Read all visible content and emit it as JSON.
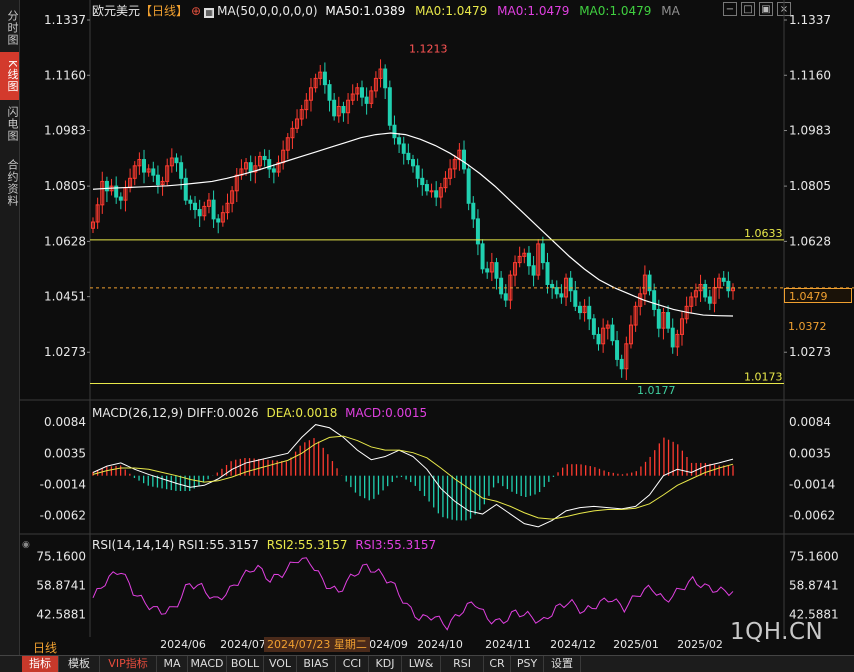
{
  "sidebar": {
    "tabs": [
      {
        "label": "分时图",
        "active": false
      },
      {
        "label": "K线图",
        "active": true
      },
      {
        "label": "闪电图",
        "active": false
      },
      {
        "label": "合约资料",
        "active": false
      }
    ]
  },
  "header": {
    "symbol": "欧元美元",
    "period_tag": "【日线】",
    "ma_label": "MA(50,0,0,0,0,0)",
    "ma50": "MA50:1.0389",
    "ma0_a": "MA0:1.0479",
    "ma0_b": "MA0:1.0479",
    "ma0_c": "MA0:1.0479",
    "ma_tail": "MA",
    "colors": {
      "symbol": "#e8e8e8",
      "period": "#f0a030",
      "ma50": "#ffffff",
      "ma0_a": "#e8e84a",
      "ma0_b": "#e040e0",
      "ma0_c": "#40d040",
      "ma_tail": "#909090"
    }
  },
  "window_buttons": [
    "−",
    "□",
    "▣",
    "×"
  ],
  "macd_header": {
    "label": "MACD(26,12,9)",
    "diff": "DIFF:0.0026",
    "dea": "DEA:0.0018",
    "macd": "MACD:0.0015"
  },
  "rsi_header": {
    "label": "RSI(14,14,14)",
    "rsi1": "RSI1:55.3157",
    "rsi2": "RSI2:55.3157",
    "rsi3": "RSI3:55.3157"
  },
  "bottom": {
    "period": "日线",
    "crosshair_date": "2024/07/23 星期二",
    "watermark": "1QH.CN",
    "tabs": [
      "指标",
      "模板",
      "VIP指标",
      "MA",
      "MACD",
      "BOLL",
      "VOL",
      "BIAS",
      "CCI",
      "KDJ",
      "LW&",
      "RSI",
      "CR",
      "PSY",
      "设置"
    ]
  },
  "chart_data": {
    "type": "candlestick",
    "price_axis": {
      "ticks": [
        "1.1337",
        "1.1160",
        "1.0983",
        "1.0805",
        "1.0628",
        "1.0451",
        "1.0273"
      ],
      "range": [
        1.012,
        1.1337
      ]
    },
    "x_ticks": [
      "2024/06",
      "2024/07",
      "2024/09",
      "2024/10",
      "2024/11",
      "2024/12",
      "2025/01",
      "2025/02"
    ],
    "annotations": {
      "high": "1.1213",
      "low": "1.0177",
      "line_upper": "1.0633",
      "line_lower": "1.0173",
      "last_price": "1.0479",
      "ma_value": "1.0372"
    },
    "price_closes": [
      1.069,
      1.0745,
      1.082,
      1.079,
      1.0805,
      1.077,
      1.076,
      1.08,
      1.083,
      1.087,
      1.089,
      1.085,
      1.086,
      1.084,
      1.081,
      1.082,
      1.087,
      1.0895,
      1.088,
      1.083,
      1.076,
      1.075,
      1.073,
      1.071,
      1.074,
      1.076,
      1.07,
      1.069,
      1.072,
      1.075,
      1.079,
      1.084,
      1.086,
      1.088,
      1.085,
      1.087,
      1.09,
      1.089,
      1.086,
      1.085,
      1.088,
      1.092,
      1.096,
      1.099,
      1.102,
      1.105,
      1.108,
      1.112,
      1.115,
      1.117,
      1.113,
      1.108,
      1.103,
      1.106,
      1.104,
      1.108,
      1.11,
      1.112,
      1.109,
      1.107,
      1.111,
      1.115,
      1.118,
      1.112,
      1.1,
      1.096,
      1.094,
      1.091,
      1.089,
      1.087,
      1.083,
      1.081,
      1.079,
      1.079,
      1.077,
      1.08,
      1.083,
      1.086,
      1.089,
      1.092,
      1.086,
      1.075,
      1.07,
      1.062,
      1.054,
      1.053,
      1.056,
      1.051,
      1.046,
      1.044,
      1.052,
      1.056,
      1.058,
      1.059,
      1.055,
      1.052,
      1.062,
      1.056,
      1.049,
      1.048,
      1.046,
      1.045,
      1.051,
      1.047,
      1.042,
      1.04,
      1.042,
      1.038,
      1.033,
      1.03,
      1.035,
      1.036,
      1.031,
      1.025,
      1.022,
      1.03,
      1.036,
      1.042,
      1.046,
      1.052,
      1.047,
      1.041,
      1.035,
      1.04,
      1.035,
      1.029,
      1.033,
      1.038,
      1.042,
      1.045,
      1.047,
      1.049,
      1.045,
      1.043,
      1.048,
      1.051,
      1.05,
      1.047,
      1.0479
    ],
    "ma50": [
      1.0795,
      1.0798,
      1.08,
      1.0802,
      1.0804,
      1.0806,
      1.081,
      1.0815,
      1.082,
      1.083,
      1.0842,
      1.0855,
      1.087,
      1.0885,
      1.09,
      1.0915,
      1.093,
      1.0945,
      1.096,
      1.097,
      1.0975,
      1.097,
      1.0955,
      1.0935,
      1.091,
      1.088,
      1.0845,
      1.0805,
      1.076,
      1.0715,
      1.067,
      1.0625,
      1.058,
      1.054,
      1.0505,
      1.048,
      1.046,
      1.044,
      1.0425,
      1.041,
      1.04,
      1.0392,
      1.039,
      1.0389
    ],
    "macd": {
      "ticks": [
        "0.0084",
        "0.0035",
        "-0.0014",
        "-0.0062"
      ],
      "range": [
        -0.0085,
        0.0095
      ],
      "diff": [
        0.0005,
        0.0015,
        0.002,
        0.001,
        0.0002,
        -0.0005,
        -0.0012,
        -0.0018,
        -0.0015,
        -0.0005,
        0.001,
        0.002,
        0.0025,
        0.003,
        0.0035,
        0.006,
        0.008,
        0.0075,
        0.006,
        0.004,
        0.0025,
        0.003,
        0.004,
        0.003,
        0.001,
        -0.002,
        -0.004,
        -0.0055,
        -0.006,
        -0.0045,
        -0.006,
        -0.0075,
        -0.008,
        -0.007,
        -0.0055,
        -0.005,
        -0.0048,
        -0.005,
        -0.0052,
        -0.0048,
        -0.003,
        0.0,
        0.001,
        0.0005,
        0.0015,
        0.002,
        0.0026
      ],
      "dea": [
        0.0002,
        0.0008,
        0.0012,
        0.0012,
        0.001,
        0.0005,
        0.0,
        -0.0006,
        -0.001,
        -0.0008,
        -0.0002,
        0.0006,
        0.0012,
        0.0018,
        0.0024,
        0.0035,
        0.005,
        0.006,
        0.0062,
        0.0055,
        0.0045,
        0.004,
        0.004,
        0.0036,
        0.0028,
        0.0012,
        -0.0005,
        -0.002,
        -0.0035,
        -0.004,
        -0.0048,
        -0.0058,
        -0.0066,
        -0.0068,
        -0.0064,
        -0.0059,
        -0.0055,
        -0.0053,
        -0.0053,
        -0.0051,
        -0.0044,
        -0.003,
        -0.0015,
        -0.0005,
        0.0005,
        0.0012,
        0.0018
      ]
    },
    "rsi": {
      "ticks": [
        "75.1600",
        "58.8741",
        "42.5881"
      ],
      "range": [
        35,
        80
      ],
      "values": [
        52,
        62,
        68,
        55,
        48,
        44,
        46,
        60,
        58,
        50,
        56,
        64,
        70,
        62,
        66,
        74,
        72,
        60,
        55,
        64,
        70,
        66,
        60,
        48,
        40,
        42,
        36,
        44,
        50,
        40,
        38,
        44,
        42,
        38,
        46,
        50,
        44,
        48,
        52,
        46,
        54,
        58,
        50,
        56,
        62,
        58,
        56,
        55.3
      ]
    }
  }
}
